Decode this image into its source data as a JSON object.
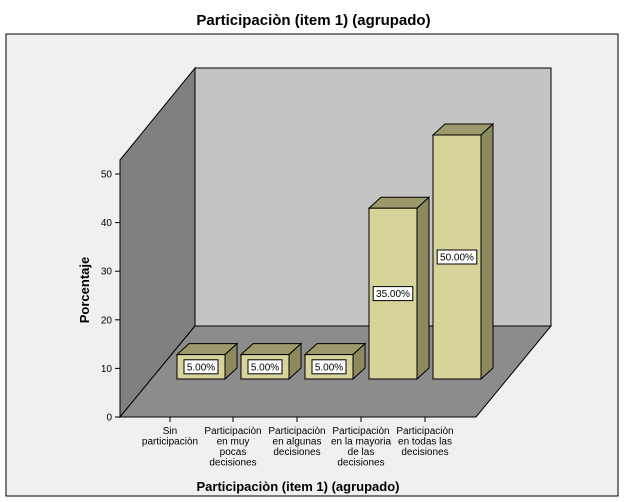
{
  "chart_data": {
    "type": "bar",
    "title": "Participaciòn (item 1) (agrupado)",
    "xlabel": "Participaciòn (item 1) (agrupado)",
    "ylabel": "Porcentaje",
    "categories": [
      [
        "Sin",
        "participaciòn"
      ],
      [
        "Participaciòn",
        "en muy",
        "pocas",
        "decisiones"
      ],
      [
        "Participaciòn",
        "en algunas",
        "decisiones"
      ],
      [
        "Participaciòn",
        "en la mayoria",
        "de las",
        "decisiones"
      ],
      [
        "Participaciòn",
        "en todas las",
        "decisiones"
      ]
    ],
    "values": [
      5,
      5,
      5,
      35,
      50
    ],
    "data_labels": [
      "5.00%",
      "5.00%",
      "5.00%",
      "35.00%",
      "50.00%"
    ],
    "yticks": [
      "0",
      "10",
      "20",
      "30",
      "40",
      "50"
    ],
    "ylim": [
      0,
      50
    ],
    "grid": false,
    "style": "3d",
    "colors": {
      "bar_front": "#d6d39b",
      "bar_top": "#9c9a6b",
      "bar_side": "#8c8a5d",
      "back_wall": "#c4c4c4",
      "side_wall": "#808080",
      "floor": "#8c8c8c",
      "plot_background": "#f0f0f0"
    }
  }
}
